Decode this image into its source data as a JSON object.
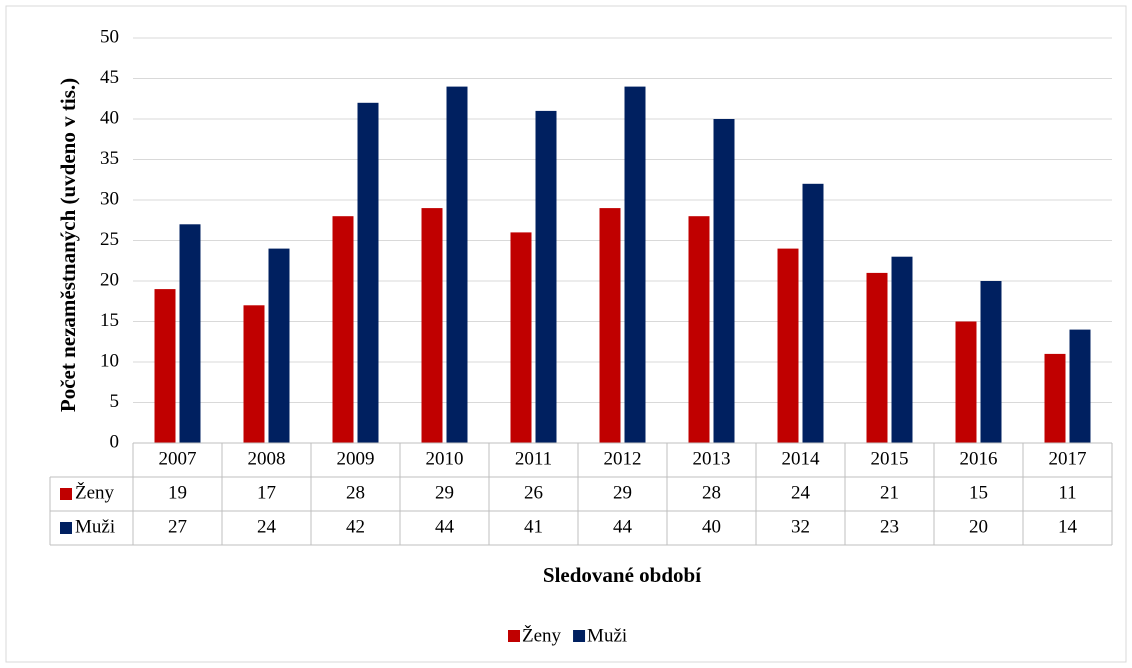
{
  "chart_data": {
    "type": "bar",
    "y_label": "Počet nezaměstnaných (uvdeno v tis.)",
    "x_label": "Sledované období",
    "categories": [
      "2007",
      "2008",
      "2009",
      "2010",
      "2011",
      "2012",
      "2013",
      "2014",
      "2015",
      "2016",
      "2017"
    ],
    "series": [
      {
        "name": "Ženy",
        "color": "#c00000",
        "values": [
          19,
          17,
          28,
          29,
          26,
          29,
          28,
          24,
          21,
          15,
          11
        ]
      },
      {
        "name": "Muži",
        "color": "#002060",
        "values": [
          27,
          24,
          42,
          44,
          41,
          44,
          40,
          32,
          23,
          20,
          14
        ]
      }
    ],
    "ylim": [
      0,
      50
    ],
    "yticks": [
      0,
      5,
      10,
      15,
      20,
      25,
      30,
      35,
      40,
      45,
      50
    ],
    "grid": true,
    "legend": "bottom",
    "data_table": true
  }
}
